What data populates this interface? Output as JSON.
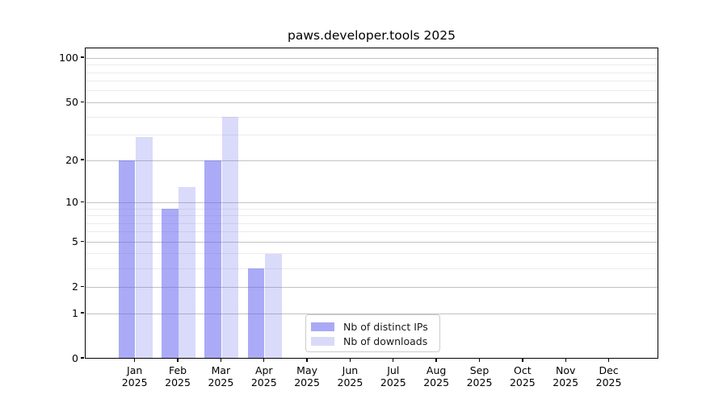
{
  "chart_data": {
    "type": "bar",
    "title": "paws.developer.tools 2025",
    "categories": [
      "Jan",
      "Feb",
      "Mar",
      "Apr",
      "May",
      "Jun",
      "Jul",
      "Aug",
      "Sep",
      "Oct",
      "Nov",
      "Dec"
    ],
    "category_year": "2025",
    "series": [
      {
        "name": "Nb of distinct IPs",
        "values": [
          20,
          9,
          20,
          3,
          0,
          0,
          0,
          0,
          0,
          0,
          0,
          0
        ],
        "color": "rgba(100,100,240,0.55)",
        "legend_color": "#a9a9f6"
      },
      {
        "name": "Nb of downloads",
        "values": [
          29,
          13,
          40,
          4,
          0,
          0,
          0,
          0,
          0,
          0,
          0,
          0
        ],
        "color": "rgba(100,100,240,0.24)",
        "legend_color": "#dadaf8"
      }
    ],
    "y_axis": {
      "scale": "log1p",
      "major_ticks": [
        0,
        1,
        2,
        5,
        10,
        20,
        50,
        100
      ],
      "minor_ticks": [
        3,
        4,
        6,
        7,
        8,
        9,
        30,
        40,
        60,
        70,
        80,
        90
      ],
      "range": [
        0,
        116
      ]
    },
    "xlabel": "",
    "ylabel": "",
    "grid": true,
    "legend_position": "lower-center"
  }
}
